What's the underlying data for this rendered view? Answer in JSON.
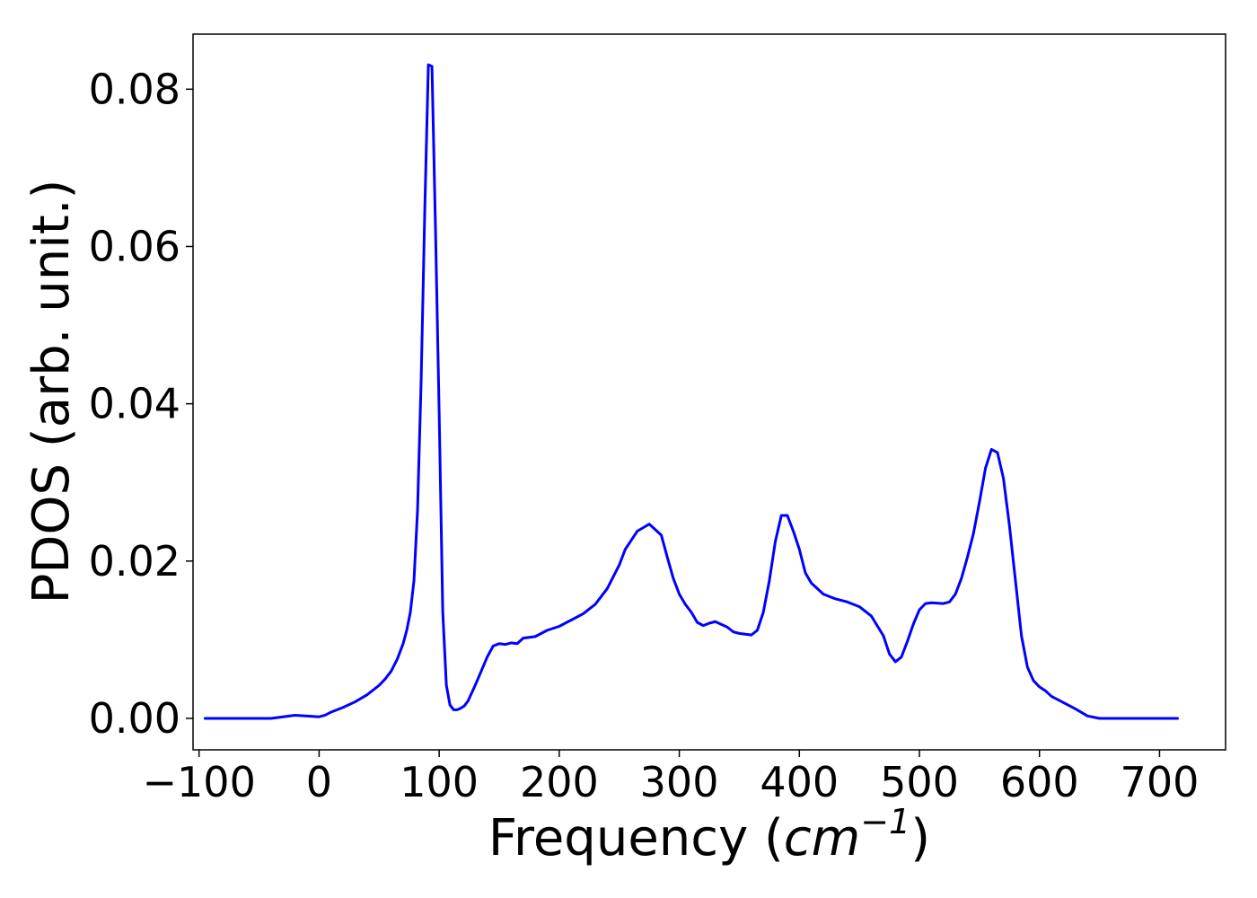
{
  "chart_data": {
    "type": "line",
    "title": "",
    "xlabel_prefix": "Frequency (",
    "xlabel_unit": "cm",
    "xlabel_exponent": "−1",
    "xlabel_suffix": ")",
    "ylabel": "PDOS (arb. unit.)",
    "xlim": [
      -105,
      755
    ],
    "ylim": [
      -0.004,
      0.087
    ],
    "xticks": [
      -100,
      0,
      100,
      200,
      300,
      400,
      500,
      600,
      700
    ],
    "xtick_labels": [
      "−100",
      "0",
      "100",
      "200",
      "300",
      "400",
      "500",
      "600",
      "700"
    ],
    "yticks": [
      0.0,
      0.02,
      0.04,
      0.06,
      0.08
    ],
    "ytick_labels": [
      "0.00",
      "0.02",
      "0.04",
      "0.06",
      "0.08"
    ],
    "grid": false,
    "legend": "none",
    "series": [
      {
        "color": "#0000ff",
        "x": [
          -95,
          -80,
          -60,
          -40,
          -30,
          -20,
          -10,
          0,
          5,
          10,
          20,
          30,
          40,
          50,
          55,
          60,
          65,
          70,
          73,
          76,
          79,
          82,
          85,
          88,
          91,
          94,
          97,
          100,
          103,
          106,
          109,
          112,
          115,
          118,
          121,
          124,
          130,
          140,
          145,
          150,
          155,
          160,
          165,
          170,
          180,
          190,
          200,
          210,
          220,
          230,
          240,
          250,
          255,
          265,
          275,
          285,
          290,
          295,
          300,
          305,
          310,
          315,
          320,
          325,
          330,
          340,
          345,
          350,
          355,
          360,
          365,
          370,
          375,
          380,
          385,
          390,
          395,
          400,
          405,
          410,
          415,
          420,
          430,
          440,
          450,
          460,
          470,
          475,
          480,
          485,
          490,
          495,
          500,
          505,
          510,
          520,
          525,
          530,
          535,
          540,
          545,
          550,
          555,
          560,
          565,
          570,
          575,
          580,
          585,
          590,
          595,
          600,
          605,
          610,
          620,
          630,
          640,
          650,
          660,
          680,
          700,
          715
        ],
        "y": [
          0.0,
          0.0,
          0.0,
          0.0,
          0.0002,
          0.0004,
          0.0003,
          0.0002,
          0.0004,
          0.0008,
          0.0014,
          0.0021,
          0.003,
          0.0042,
          0.005,
          0.006,
          0.0075,
          0.0095,
          0.0112,
          0.0135,
          0.0175,
          0.0265,
          0.043,
          0.0645,
          0.0831,
          0.0829,
          0.0618,
          0.0388,
          0.0135,
          0.0042,
          0.0017,
          0.0011,
          0.0011,
          0.0013,
          0.0016,
          0.0022,
          0.0042,
          0.0078,
          0.0092,
          0.0095,
          0.0094,
          0.0096,
          0.0095,
          0.0102,
          0.0104,
          0.0112,
          0.0117,
          0.0125,
          0.0133,
          0.0145,
          0.0165,
          0.0195,
          0.0215,
          0.0238,
          0.0247,
          0.0233,
          0.0205,
          0.0178,
          0.0158,
          0.0145,
          0.0135,
          0.0122,
          0.0118,
          0.0121,
          0.0123,
          0.0116,
          0.011,
          0.0108,
          0.0107,
          0.0106,
          0.0112,
          0.0135,
          0.0175,
          0.0225,
          0.0258,
          0.0258,
          0.0238,
          0.0215,
          0.0185,
          0.0172,
          0.0165,
          0.0158,
          0.0152,
          0.0148,
          0.0142,
          0.013,
          0.0105,
          0.0082,
          0.0072,
          0.0078,
          0.0098,
          0.012,
          0.0138,
          0.0146,
          0.0147,
          0.0146,
          0.0148,
          0.0158,
          0.0178,
          0.0205,
          0.0235,
          0.0275,
          0.0318,
          0.0342,
          0.0338,
          0.0305,
          0.0245,
          0.0175,
          0.0105,
          0.0065,
          0.0048,
          0.004,
          0.0035,
          0.0028,
          0.002,
          0.0012,
          0.0003,
          0.0,
          0.0,
          0.0,
          0.0,
          0.0
        ]
      }
    ]
  }
}
